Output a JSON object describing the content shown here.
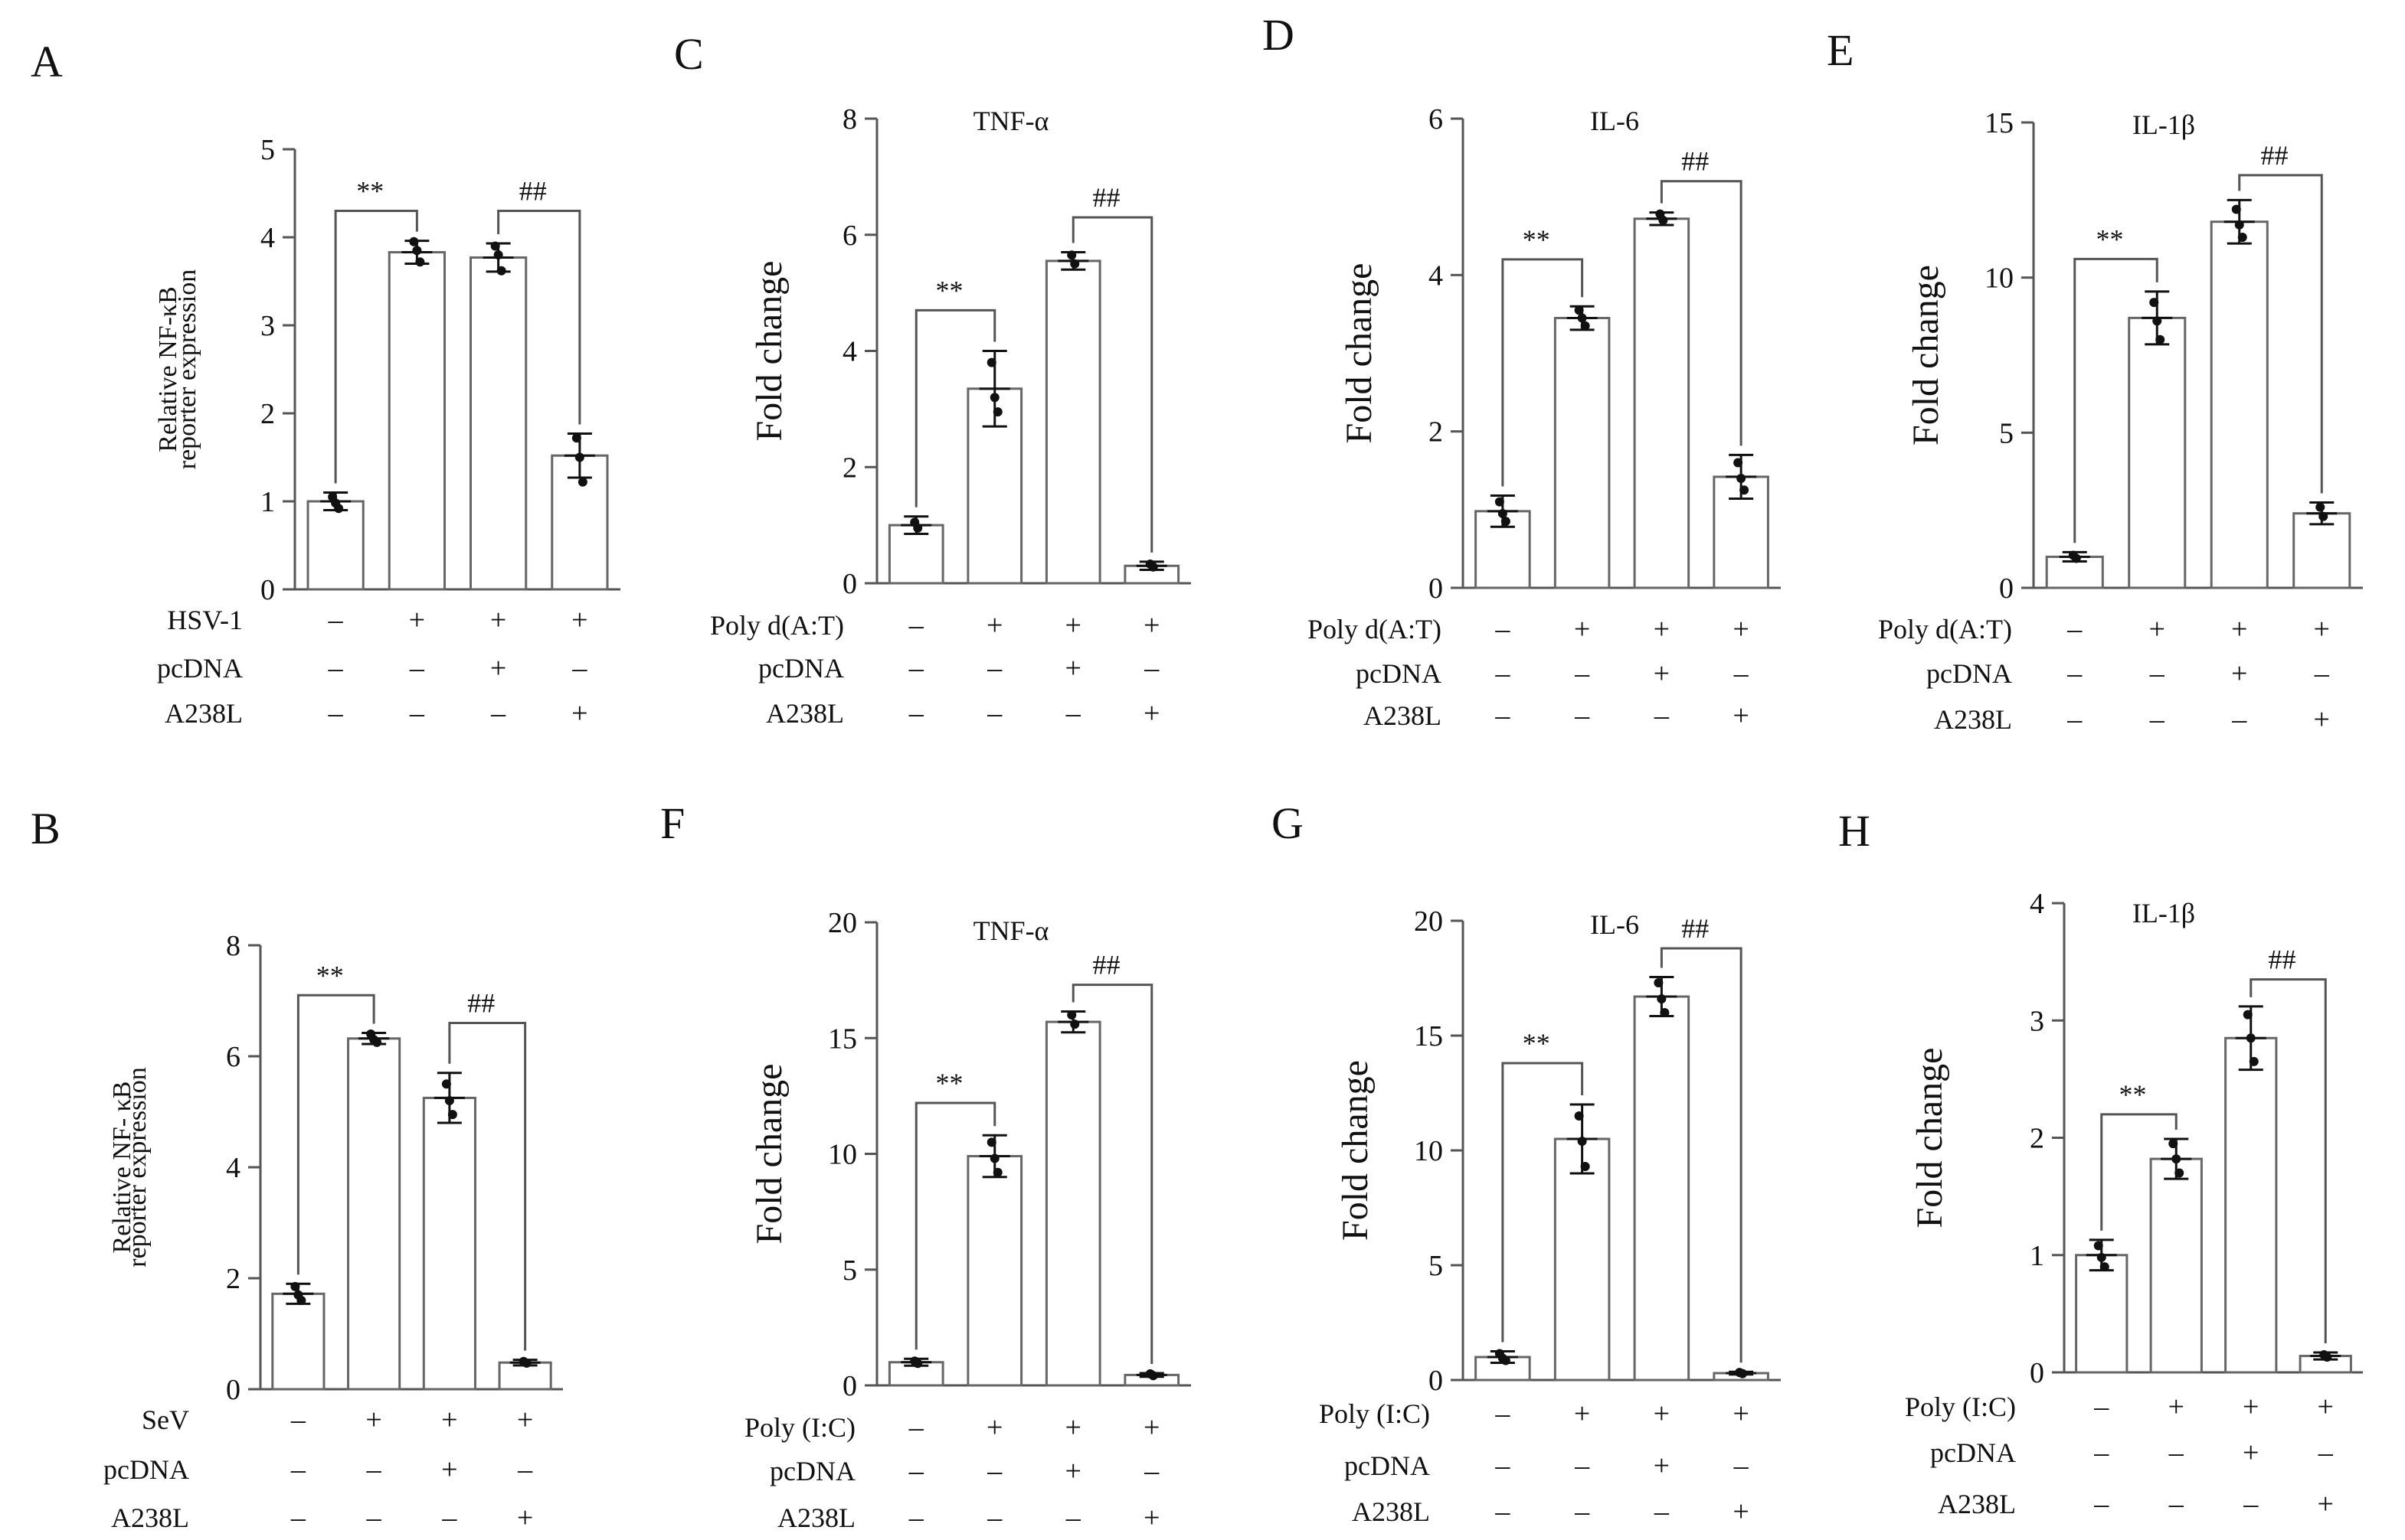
{
  "panels": [
    {
      "letter": "A",
      "title": "",
      "ylabel": [
        "Relative NF-κB",
        "reporter expression"
      ],
      "ylim": [
        0,
        5
      ],
      "yticks": [
        0,
        1,
        2,
        3,
        4,
        5
      ],
      "bars": [
        {
          "value": 1.0,
          "err": 0.1,
          "points": [
            1.05,
            0.98,
            0.92
          ]
        },
        {
          "value": 3.83,
          "err": 0.13,
          "points": [
            3.95,
            3.85,
            3.72
          ]
        },
        {
          "value": 3.77,
          "err": 0.16,
          "points": [
            3.9,
            3.8,
            3.62
          ]
        },
        {
          "value": 1.52,
          "err": 0.25,
          "points": [
            1.72,
            1.5,
            1.22
          ]
        }
      ],
      "sig": [
        {
          "label": "**",
          "from": 0,
          "to": 1,
          "y": 4.3
        },
        {
          "label": "##",
          "from": 2,
          "to": 3,
          "y": 4.3
        }
      ],
      "conditions": [
        {
          "label": "HSV-1",
          "values": [
            "–",
            "+",
            "+",
            "+"
          ]
        },
        {
          "label": "pcDNA",
          "values": [
            "–",
            "–",
            "+",
            "–"
          ]
        },
        {
          "label": "A238L",
          "values": [
            "–",
            "–",
            "–",
            "+"
          ]
        }
      ]
    },
    {
      "letter": "C",
      "title": "TNF-α",
      "ylabel": [
        "Fold change"
      ],
      "ylim": [
        0,
        8
      ],
      "yticks": [
        0,
        2,
        4,
        6,
        8
      ],
      "bars": [
        {
          "value": 1.0,
          "err": 0.15,
          "points": [
            1.05,
            0.95
          ]
        },
        {
          "value": 3.35,
          "err": 0.65,
          "points": [
            3.8,
            3.2,
            2.95
          ]
        },
        {
          "value": 5.55,
          "err": 0.15,
          "points": [
            5.65,
            5.5
          ]
        },
        {
          "value": 0.3,
          "err": 0.07,
          "points": [
            0.33,
            0.28
          ]
        }
      ],
      "sig": [
        {
          "label": "**",
          "from": 0,
          "to": 1,
          "y": 4.7
        },
        {
          "label": "##",
          "from": 2,
          "to": 3,
          "y": 6.3
        }
      ],
      "conditions": [
        {
          "label": "Poly d(A:T)",
          "values": [
            "–",
            "+",
            "+",
            "+"
          ]
        },
        {
          "label": "pcDNA",
          "values": [
            "–",
            "–",
            "+",
            "–"
          ]
        },
        {
          "label": "A238L",
          "values": [
            "–",
            "–",
            "–",
            "+"
          ]
        }
      ]
    },
    {
      "letter": "D",
      "title": "IL-6",
      "ylabel": [
        "Fold change"
      ],
      "ylim": [
        0,
        6
      ],
      "yticks": [
        0,
        2,
        4,
        6
      ],
      "bars": [
        {
          "value": 0.98,
          "err": 0.2,
          "points": [
            1.1,
            0.95,
            0.85
          ]
        },
        {
          "value": 3.45,
          "err": 0.15,
          "points": [
            3.55,
            3.45,
            3.35
          ]
        },
        {
          "value": 4.72,
          "err": 0.08,
          "points": [
            4.78,
            4.7
          ]
        },
        {
          "value": 1.42,
          "err": 0.28,
          "points": [
            1.6,
            1.4,
            1.25
          ]
        }
      ],
      "sig": [
        {
          "label": "**",
          "from": 0,
          "to": 1,
          "y": 4.2
        },
        {
          "label": "##",
          "from": 2,
          "to": 3,
          "y": 5.2
        }
      ],
      "conditions": [
        {
          "label": "Poly d(A:T)",
          "values": [
            "–",
            "+",
            "+",
            "+"
          ]
        },
        {
          "label": "pcDNA",
          "values": [
            "–",
            "–",
            "+",
            "–"
          ]
        },
        {
          "label": "A238L",
          "values": [
            "–",
            "–",
            "–",
            "+"
          ]
        }
      ]
    },
    {
      "letter": "E",
      "title": "IL-1β",
      "ylabel": [
        "Fold change"
      ],
      "ylim": [
        0,
        15
      ],
      "yticks": [
        0,
        5,
        10,
        15
      ],
      "bars": [
        {
          "value": 1.0,
          "err": 0.15,
          "points": [
            1.05,
            0.95
          ]
        },
        {
          "value": 8.7,
          "err": 0.85,
          "points": [
            9.2,
            8.6,
            8.0
          ]
        },
        {
          "value": 11.8,
          "err": 0.7,
          "points": [
            12.2,
            11.7,
            11.3
          ]
        },
        {
          "value": 2.4,
          "err": 0.35,
          "points": [
            2.6,
            2.3
          ]
        }
      ],
      "sig": [
        {
          "label": "**",
          "from": 0,
          "to": 1,
          "y": 10.6
        },
        {
          "label": "##",
          "from": 2,
          "to": 3,
          "y": 13.3
        }
      ],
      "conditions": [
        {
          "label": "Poly d(A:T)",
          "values": [
            "–",
            "+",
            "+",
            "+"
          ]
        },
        {
          "label": "pcDNA",
          "values": [
            "–",
            "–",
            "+",
            "–"
          ]
        },
        {
          "label": "A238L",
          "values": [
            "–",
            "–",
            "–",
            "+"
          ]
        }
      ]
    },
    {
      "letter": "B",
      "title": "",
      "ylabel": [
        "Relative NF- κB",
        "reporter expression"
      ],
      "ylim": [
        0,
        8
      ],
      "yticks": [
        0,
        2,
        4,
        6,
        8
      ],
      "bars": [
        {
          "value": 1.72,
          "err": 0.18,
          "points": [
            1.85,
            1.7,
            1.6
          ]
        },
        {
          "value": 6.32,
          "err": 0.1,
          "points": [
            6.4,
            6.3,
            6.25
          ]
        },
        {
          "value": 5.25,
          "err": 0.45,
          "points": [
            5.5,
            5.2,
            4.95
          ]
        },
        {
          "value": 0.48,
          "err": 0.05,
          "points": [
            0.5,
            0.47
          ]
        }
      ],
      "sig": [
        {
          "label": "**",
          "from": 0,
          "to": 1,
          "y": 7.1
        },
        {
          "label": "##",
          "from": 2,
          "to": 3,
          "y": 6.6
        }
      ],
      "conditions": [
        {
          "label": "SeV",
          "values": [
            "–",
            "+",
            "+",
            "+"
          ]
        },
        {
          "label": "pcDNA",
          "values": [
            "–",
            "–",
            "+",
            "–"
          ]
        },
        {
          "label": "A238L",
          "values": [
            "–",
            "–",
            "–",
            "+"
          ]
        }
      ]
    },
    {
      "letter": "F",
      "title": "TNF-α",
      "ylabel": [
        "Fold change"
      ],
      "ylim": [
        0,
        20
      ],
      "yticks": [
        0,
        5,
        10,
        15,
        20
      ],
      "bars": [
        {
          "value": 1.0,
          "err": 0.15,
          "points": [
            1.05,
            0.95
          ]
        },
        {
          "value": 9.9,
          "err": 0.9,
          "points": [
            10.5,
            9.8,
            9.2
          ]
        },
        {
          "value": 15.7,
          "err": 0.45,
          "points": [
            16.0,
            15.6
          ]
        },
        {
          "value": 0.45,
          "err": 0.08,
          "points": [
            0.5,
            0.42
          ]
        }
      ],
      "sig": [
        {
          "label": "**",
          "from": 0,
          "to": 1,
          "y": 12.2
        },
        {
          "label": "##",
          "from": 2,
          "to": 3,
          "y": 17.3
        }
      ],
      "conditions": [
        {
          "label": "Poly (I:C)",
          "values": [
            "–",
            "+",
            "+",
            "+"
          ]
        },
        {
          "label": "pcDNA",
          "values": [
            "–",
            "–",
            "+",
            "–"
          ]
        },
        {
          "label": "A238L",
          "values": [
            "–",
            "–",
            "–",
            "+"
          ]
        }
      ]
    },
    {
      "letter": "G",
      "title": "IL-6",
      "ylabel": [
        "Fold change"
      ],
      "ylim": [
        0,
        20
      ],
      "yticks": [
        0,
        5,
        10,
        15,
        20
      ],
      "bars": [
        {
          "value": 1.0,
          "err": 0.25,
          "points": [
            1.15,
            0.95,
            0.85
          ]
        },
        {
          "value": 10.5,
          "err": 1.5,
          "points": [
            11.5,
            10.4,
            9.3
          ]
        },
        {
          "value": 16.7,
          "err": 0.85,
          "points": [
            17.3,
            16.6,
            16.0
          ]
        },
        {
          "value": 0.3,
          "err": 0.06,
          "points": [
            0.33,
            0.28
          ]
        }
      ],
      "sig": [
        {
          "label": "**",
          "from": 0,
          "to": 1,
          "y": 13.8
        },
        {
          "label": "##",
          "from": 2,
          "to": 3,
          "y": 18.8
        }
      ],
      "conditions": [
        {
          "label": "Poly (I:C)",
          "values": [
            "–",
            "+",
            "+",
            "+"
          ]
        },
        {
          "label": "pcDNA",
          "values": [
            "–",
            "–",
            "+",
            "–"
          ]
        },
        {
          "label": "A238L",
          "values": [
            "–",
            "–",
            "–",
            "+"
          ]
        }
      ]
    },
    {
      "letter": "H",
      "title": "IL-1β",
      "ylabel": [
        "Fold change"
      ],
      "ylim": [
        0,
        4
      ],
      "yticks": [
        0,
        1,
        2,
        3,
        4
      ],
      "bars": [
        {
          "value": 1.0,
          "err": 0.13,
          "points": [
            1.08,
            0.98,
            0.9
          ]
        },
        {
          "value": 1.82,
          "err": 0.17,
          "points": [
            1.95,
            1.82,
            1.7
          ]
        },
        {
          "value": 2.85,
          "err": 0.27,
          "points": [
            3.05,
            2.85,
            2.65
          ]
        },
        {
          "value": 0.14,
          "err": 0.03,
          "points": [
            0.15,
            0.13
          ]
        }
      ],
      "sig": [
        {
          "label": "**",
          "from": 0,
          "to": 1,
          "y": 2.2
        },
        {
          "label": "##",
          "from": 2,
          "to": 3,
          "y": 3.35
        }
      ],
      "conditions": [
        {
          "label": "Poly (I:C)",
          "values": [
            "–",
            "+",
            "+",
            "+"
          ]
        },
        {
          "label": "pcDNA",
          "values": [
            "–",
            "–",
            "+",
            "–"
          ]
        },
        {
          "label": "A238L",
          "values": [
            "–",
            "–",
            "–",
            "+"
          ]
        }
      ]
    }
  ]
}
